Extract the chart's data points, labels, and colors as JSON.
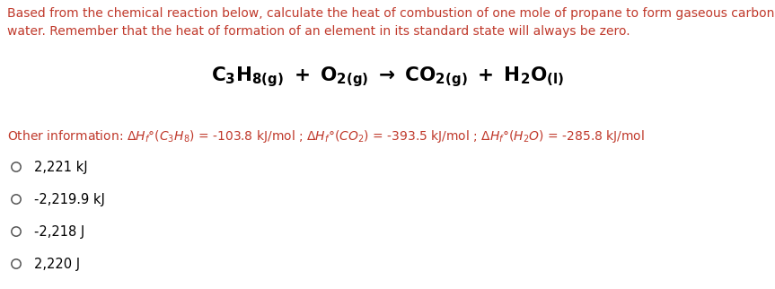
{
  "background_color": "#ffffff",
  "para_line1": "Based from the chemical reaction below, calculate the heat of combustion of one mole of propane to form gaseous carbon dioxide and liquid",
  "para_line2": "water. Remember that the heat of formation of an element in its standard state will always be zero.",
  "para_color": "#c0392b",
  "para_fontsize": 10.0,
  "eq_color": "#000000",
  "eq_fontsize": 15.5,
  "info_color": "#c0392b",
  "info_fontsize": 10.0,
  "options": [
    {
      "label": "2,221 kJ"
    },
    {
      "label": "-2,219.9 kJ"
    },
    {
      "label": "-2,218 J"
    },
    {
      "label": "2,220 J"
    }
  ],
  "option_color": "#000000",
  "option_fontsize": 10.5,
  "circle_color": "#555555"
}
